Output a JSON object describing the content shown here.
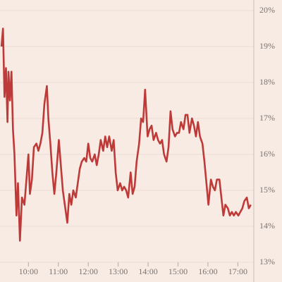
{
  "chart_data": {
    "type": "line",
    "x": [
      "09:06",
      "09:09",
      "09:12",
      "09:15",
      "09:18",
      "09:20",
      "09:23",
      "09:26",
      "09:29",
      "09:32",
      "09:36",
      "09:39",
      "09:43",
      "09:47",
      "09:52",
      "09:56",
      "10:00",
      "10:03",
      "10:07",
      "10:11",
      "10:16",
      "10:20",
      "10:24",
      "10:28",
      "10:32",
      "10:37",
      "10:40",
      "10:44",
      "10:48",
      "10:52",
      "10:56",
      "11:01",
      "11:05",
      "11:09",
      "11:13",
      "11:18",
      "11:22",
      "11:26",
      "11:30",
      "11:35",
      "11:39",
      "11:43",
      "11:47",
      "11:52",
      "11:56",
      "12:00",
      "12:04",
      "12:08",
      "12:13",
      "12:17",
      "12:21",
      "12:25",
      "12:30",
      "12:34",
      "12:38",
      "12:42",
      "12:47",
      "12:51",
      "12:55",
      "12:59",
      "13:04",
      "13:08",
      "13:12",
      "13:16",
      "13:20",
      "13:25",
      "13:29",
      "13:33",
      "13:37",
      "13:42",
      "13:46",
      "13:50",
      "13:54",
      "13:59",
      "14:03",
      "14:07",
      "14:11",
      "14:16",
      "14:20",
      "14:24",
      "14:28",
      "14:32",
      "14:37",
      "14:41",
      "14:45",
      "14:49",
      "14:54",
      "14:58",
      "15:02",
      "15:06",
      "15:11",
      "15:15",
      "15:19",
      "15:23",
      "15:28",
      "15:32",
      "15:36",
      "15:40",
      "15:44",
      "15:49",
      "15:53",
      "15:57",
      "16:01",
      "16:06",
      "16:10",
      "16:14",
      "16:18",
      "16:23",
      "16:27",
      "16:31",
      "16:35",
      "16:40",
      "16:44",
      "16:48",
      "16:52",
      "16:56",
      "17:01",
      "17:05",
      "17:09",
      "17:13",
      "17:18",
      "17:22",
      "17:26"
    ],
    "values": [
      19.0,
      19.5,
      17.6,
      18.4,
      16.9,
      18.3,
      17.5,
      18.3,
      16.7,
      16.0,
      14.3,
      15.2,
      13.6,
      14.8,
      14.6,
      15.3,
      16.0,
      14.9,
      15.3,
      16.2,
      16.3,
      16.1,
      16.3,
      16.6,
      17.4,
      17.9,
      17.0,
      16.3,
      15.5,
      14.9,
      15.5,
      16.4,
      15.7,
      15.0,
      14.6,
      14.1,
      14.9,
      14.6,
      15.0,
      14.8,
      15.2,
      15.6,
      15.8,
      15.9,
      15.8,
      16.3,
      15.9,
      15.8,
      16.0,
      15.7,
      16.0,
      16.4,
      16.1,
      16.5,
      16.2,
      16.5,
      16.1,
      16.4,
      15.5,
      15.0,
      15.2,
      15.0,
      15.1,
      15.0,
      14.8,
      15.5,
      14.9,
      15.1,
      15.8,
      16.3,
      17.0,
      16.9,
      17.8,
      16.5,
      16.7,
      16.8,
      16.4,
      16.6,
      16.4,
      16.3,
      16.4,
      16.0,
      15.8,
      16.2,
      17.2,
      16.7,
      16.5,
      16.6,
      16.6,
      16.9,
      16.7,
      17.1,
      17.1,
      16.6,
      17.0,
      16.8,
      16.5,
      16.9,
      16.5,
      16.3,
      15.8,
      15.2,
      14.6,
      15.3,
      15.1,
      15.0,
      15.3,
      15.3,
      14.8,
      14.3,
      14.6,
      14.5,
      14.3,
      14.4,
      14.3,
      14.4,
      14.3,
      14.4,
      14.5,
      14.7,
      14.8,
      14.5,
      14.6
    ],
    "color": "#bd3a38",
    "xlim": [
      "09:03",
      "17:32"
    ],
    "xticks": [
      "10:00",
      "11:00",
      "12:00",
      "13:00",
      "14:00",
      "15:00",
      "16:00",
      "17:00"
    ],
    "ylim": [
      13,
      20
    ],
    "yticks": [
      {
        "value": 13,
        "label": "13%"
      },
      {
        "value": 14,
        "label": "14%"
      },
      {
        "value": 15,
        "label": "15%"
      },
      {
        "value": 16,
        "label": "16%"
      },
      {
        "value": 17,
        "label": "17%"
      },
      {
        "value": 18,
        "label": "18%"
      },
      {
        "value": 19,
        "label": "19%"
      },
      {
        "value": 20,
        "label": "20%"
      }
    ],
    "grid": true
  }
}
